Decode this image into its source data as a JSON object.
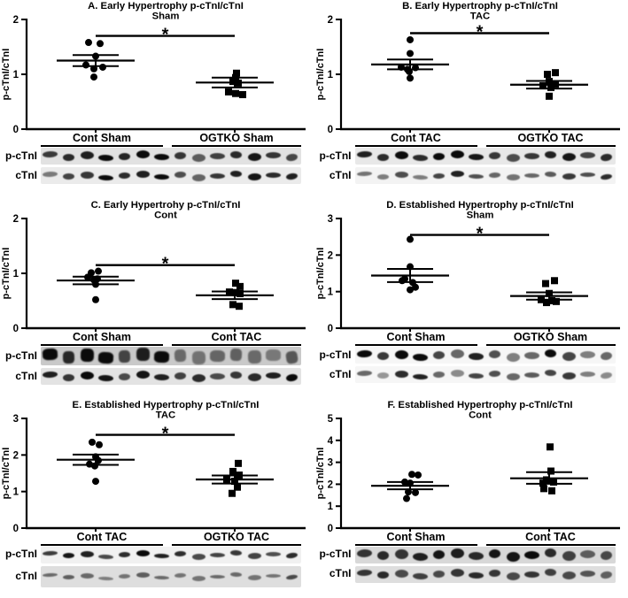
{
  "figure_label": "p-cTnI/cTnI quantification with representative western blots",
  "colors": {
    "ink": "#000000",
    "band": "#0b0b0b",
    "background": "#ffffff"
  },
  "chart_data": [
    {
      "id": "A",
      "type": "scatter",
      "title": "A. Early Hypertrophy p-cTnI/cTnI",
      "subtitle": "Sham",
      "ylabel": "p-cTnI/cTnI",
      "ymax": 2,
      "yticks": [
        0,
        1,
        2
      ],
      "significance": {
        "symbol": "*",
        "y": 1.7
      },
      "groups": [
        {
          "label": "Cont Sham",
          "marker": "circle",
          "mean": 1.25,
          "sem_upper": 1.35,
          "sem_lower": 1.15,
          "points": [
            [
              1.58,
              -8
            ],
            [
              1.56,
              5
            ],
            [
              1.33,
              0
            ],
            [
              1.17,
              -11
            ],
            [
              1.13,
              8
            ],
            [
              1.1,
              -2
            ],
            [
              0.95,
              -2
            ]
          ]
        },
        {
          "label": "OGTKO Sham",
          "marker": "square",
          "mean": 0.85,
          "sem_upper": 0.94,
          "sem_lower": 0.76,
          "points": [
            [
              1.02,
              2
            ],
            [
              0.94,
              1
            ],
            [
              0.87,
              -2
            ],
            [
              0.84,
              4
            ],
            [
              0.68,
              -7
            ],
            [
              0.65,
              1
            ],
            [
              0.63,
              9
            ]
          ]
        }
      ],
      "blot": {
        "rows": [
          {
            "label": "p-cTnI",
            "bg": "#e2e2e2",
            "strip_h": 19,
            "band_h": 7,
            "shape": "oval",
            "bands": [
              0.78,
              0.85,
              0.9,
              1,
              0.88,
              1,
              1,
              0.8,
              0.62,
              0.75,
              0.85,
              0.95,
              0.8,
              0.72
            ]
          },
          {
            "label": "cTnI",
            "bg": "#ebebeb",
            "strip_h": 19,
            "band_h": 6,
            "shape": "oval",
            "bands": [
              0.5,
              0.75,
              0.8,
              1,
              0.85,
              0.9,
              1,
              0.7,
              0.6,
              0.8,
              0.9,
              0.95,
              0.85,
              0.9
            ]
          }
        ]
      }
    },
    {
      "id": "B",
      "type": "scatter",
      "title": "B. Early Hypertrophy p-cTnI/cTnI",
      "subtitle": "TAC",
      "ylabel": "p-cTnI/cTnI",
      "ymax": 2,
      "yticks": [
        0,
        1,
        2
      ],
      "significance": {
        "symbol": "*",
        "y": 1.75
      },
      "groups": [
        {
          "label": "Cont TAC",
          "marker": "circle",
          "mean": 1.18,
          "sem_upper": 1.27,
          "sem_lower": 1.09,
          "points": [
            [
              1.63,
              0
            ],
            [
              1.38,
              0
            ],
            [
              1.13,
              -10
            ],
            [
              1.12,
              6
            ],
            [
              1.09,
              -3
            ],
            [
              1.05,
              -1
            ],
            [
              0.93,
              0
            ]
          ]
        },
        {
          "label": "OGTKO TAC",
          "marker": "square",
          "mean": 0.81,
          "sem_upper": 0.88,
          "sem_lower": 0.74,
          "points": [
            [
              1.03,
              7
            ],
            [
              1.0,
              -2
            ],
            [
              0.87,
              0
            ],
            [
              0.82,
              7
            ],
            [
              0.79,
              -7
            ],
            [
              0.76,
              2
            ],
            [
              0.6,
              0
            ]
          ]
        }
      ],
      "blot": {
        "rows": [
          {
            "label": "p-cTnI",
            "bg": "#e8e8e8",
            "strip_h": 19,
            "band_h": 7,
            "shape": "oval",
            "bands": [
              0.9,
              0.85,
              1,
              0.85,
              1,
              1,
              0.95,
              0.8,
              0.7,
              0.8,
              0.9,
              0.95,
              0.75,
              0.85
            ]
          },
          {
            "label": "cTnI",
            "bg": "#f3f3f3",
            "strip_h": 19,
            "band_h": 5,
            "shape": "oval",
            "bands": [
              0.55,
              0.5,
              0.7,
              0.5,
              0.75,
              0.9,
              0.7,
              0.6,
              0.55,
              0.6,
              0.65,
              0.8,
              0.7,
              0.85
            ]
          }
        ]
      }
    },
    {
      "id": "C",
      "type": "scatter",
      "title": "C. Early Hypertrohy p-cTnI/cTnI",
      "subtitle": "Cont",
      "ylabel": "p-cTnI/cTnI",
      "ymax": 2,
      "yticks": [
        0,
        1,
        2
      ],
      "significance": {
        "symbol": "*",
        "y": 1.15
      },
      "groups": [
        {
          "label": "Cont Sham",
          "marker": "circle",
          "mean": 0.87,
          "sem_upper": 0.94,
          "sem_lower": 0.8,
          "points": [
            [
              1.04,
              3
            ],
            [
              1.01,
              -5
            ],
            [
              0.93,
              -9
            ],
            [
              0.9,
              2
            ],
            [
              0.88,
              -2
            ],
            [
              0.8,
              0
            ],
            [
              0.52,
              0
            ]
          ]
        },
        {
          "label": "Cont TAC",
          "marker": "square",
          "mean": 0.6,
          "sem_upper": 0.67,
          "sem_lower": 0.53,
          "points": [
            [
              0.82,
              1
            ],
            [
              0.76,
              6
            ],
            [
              0.66,
              -6
            ],
            [
              0.65,
              1
            ],
            [
              0.63,
              6
            ],
            [
              0.43,
              -2
            ],
            [
              0.4,
              5
            ]
          ]
        }
      ],
      "blot": {
        "rows": [
          {
            "label": "p-cTnI",
            "bg": "#c9c9c9",
            "strip_h": 21,
            "band_h": 13,
            "shape": "block",
            "bands": [
              1,
              0.85,
              1,
              1,
              0.7,
              0.9,
              1,
              0.5,
              0.45,
              0.52,
              0.55,
              0.5,
              0.42,
              0.6
            ]
          },
          {
            "label": "cTnI",
            "bg": "#e3e3e3",
            "strip_h": 19,
            "band_h": 7,
            "shape": "oval",
            "bands": [
              0.9,
              0.8,
              1,
              0.95,
              0.7,
              0.95,
              0.9,
              0.75,
              0.85,
              0.7,
              0.8,
              0.85,
              0.9,
              1
            ]
          }
        ]
      }
    },
    {
      "id": "D",
      "type": "scatter",
      "title": "D. Established Hypertrophy p-cTnI/cTnI",
      "subtitle": "Sham",
      "ylabel": "p-cTnI/cTnI",
      "ymax": 3,
      "yticks": [
        0,
        1,
        2,
        3
      ],
      "significance": {
        "symbol": "*",
        "y": 2.55
      },
      "groups": [
        {
          "label": "Cont Sham",
          "marker": "circle",
          "mean": 1.44,
          "sem_upper": 1.62,
          "sem_lower": 1.26,
          "points": [
            [
              2.43,
              0
            ],
            [
              1.68,
              0
            ],
            [
              1.35,
              -6
            ],
            [
              1.3,
              -9
            ],
            [
              1.25,
              3
            ],
            [
              1.12,
              6
            ],
            [
              1.05,
              0
            ]
          ]
        },
        {
          "label": "OGTKO Sham",
          "marker": "square",
          "mean": 0.88,
          "sem_upper": 0.98,
          "sem_lower": 0.78,
          "points": [
            [
              1.3,
              6
            ],
            [
              1.22,
              -4
            ],
            [
              0.95,
              0
            ],
            [
              0.78,
              -9
            ],
            [
              0.7,
              -3
            ],
            [
              0.75,
              3
            ],
            [
              0.73,
              8
            ]
          ]
        }
      ],
      "blot": {
        "rows": [
          {
            "label": "p-cTnI",
            "bg": "#f6f6f6",
            "strip_h": 19,
            "band_h": 8,
            "shape": "oval",
            "bands": [
              1,
              0.8,
              1,
              1,
              0.75,
              0.6,
              0.9,
              0.7,
              0.5,
              0.6,
              1,
              0.75,
              0.5,
              0.6
            ]
          },
          {
            "label": "cTnI",
            "bg": "#f6f6f6",
            "strip_h": 19,
            "band_h": 6,
            "shape": "oval",
            "bands": [
              0.6,
              0.4,
              0.85,
              0.9,
              0.6,
              0.45,
              0.75,
              0.7,
              0.6,
              0.65,
              0.75,
              0.8,
              0.5,
              0.45
            ]
          }
        ]
      }
    },
    {
      "id": "E",
      "type": "scatter",
      "title": "E. Established Hypertrophy p-cTnI/cTnI",
      "subtitle": "TAC",
      "ylabel": "p-cTnI/cTnI",
      "ymax": 3,
      "yticks": [
        0,
        1,
        2,
        3
      ],
      "significance": {
        "symbol": "*",
        "y": 2.55
      },
      "groups": [
        {
          "label": "Cont TAC",
          "marker": "circle",
          "mean": 1.87,
          "sem_upper": 2.01,
          "sem_lower": 1.73,
          "points": [
            [
              2.35,
              -4
            ],
            [
              2.28,
              4
            ],
            [
              1.95,
              0
            ],
            [
              1.85,
              3
            ],
            [
              1.75,
              -7
            ],
            [
              1.7,
              -1
            ],
            [
              1.28,
              0
            ]
          ]
        },
        {
          "label": "OGTKO TAC",
          "marker": "square",
          "mean": 1.33,
          "sem_upper": 1.44,
          "sem_lower": 1.22,
          "points": [
            [
              1.77,
              4
            ],
            [
              1.55,
              -2
            ],
            [
              1.45,
              5
            ],
            [
              1.32,
              -9
            ],
            [
              1.28,
              0
            ],
            [
              1.12,
              3
            ],
            [
              0.95,
              -3
            ]
          ]
        }
      ],
      "blot": {
        "rows": [
          {
            "label": "p-cTnI",
            "bg": "#f1f1f1",
            "strip_h": 19,
            "band_h": 5,
            "shape": "oval",
            "bands": [
              0.78,
              0.95,
              0.9,
              0.72,
              0.85,
              1,
              0.9,
              0.85,
              0.72,
              0.75,
              0.8,
              0.75,
              0.7,
              0.85
            ]
          },
          {
            "label": "cTnI",
            "bg": "#dedede",
            "strip_h": 24,
            "band_h": 4,
            "shape": "oval",
            "bands": [
              0.55,
              0.6,
              0.55,
              0.45,
              0.5,
              0.6,
              0.55,
              0.5,
              0.5,
              0.55,
              0.55,
              0.5,
              0.5,
              0.7
            ]
          }
        ]
      }
    },
    {
      "id": "F",
      "type": "scatter",
      "title": "F. Established Hypertrophy p-cTnI/cTnI",
      "subtitle": "Cont",
      "ylabel": "p-cTnI/cTnI",
      "ymax": 5,
      "yticks": [
        0,
        1,
        2,
        3,
        4,
        5
      ],
      "significance": null,
      "groups": [
        {
          "label": "Cont Sham",
          "marker": "circle",
          "mean": 1.93,
          "sem_upper": 2.1,
          "sem_lower": 1.77,
          "points": [
            [
              2.45,
              2
            ],
            [
              2.42,
              9
            ],
            [
              2.1,
              -6
            ],
            [
              2.05,
              0
            ],
            [
              1.65,
              -2
            ],
            [
              1.62,
              6
            ],
            [
              1.35,
              -4
            ]
          ]
        },
        {
          "label": "Cont TAC",
          "marker": "square",
          "mean": 2.27,
          "sem_upper": 2.55,
          "sem_lower": 2.02,
          "points": [
            [
              3.7,
              1
            ],
            [
              2.6,
              2
            ],
            [
              2.2,
              -3
            ],
            [
              2.1,
              5
            ],
            [
              2.05,
              -7
            ],
            [
              1.8,
              -6
            ],
            [
              1.7,
              3
            ]
          ]
        }
      ],
      "blot": {
        "rows": [
          {
            "label": "p-cTnI",
            "bg": "#d8d8d8",
            "strip_h": 19,
            "band_h": 9,
            "shape": "oval",
            "bands": [
              0.8,
              0.85,
              0.8,
              0.9,
              0.95,
              0.9,
              0.85,
              0.95,
              0.95,
              1,
              0.85,
              0.75,
              0.6,
              0.7
            ]
          },
          {
            "label": "cTnI",
            "bg": "#dedede",
            "strip_h": 19,
            "band_h": 7,
            "shape": "oval",
            "bands": [
              0.8,
              0.85,
              0.7,
              0.75,
              0.7,
              0.8,
              0.85,
              0.8,
              0.7,
              0.8,
              0.75,
              0.7,
              0.65,
              0.6
            ]
          }
        ]
      }
    }
  ]
}
